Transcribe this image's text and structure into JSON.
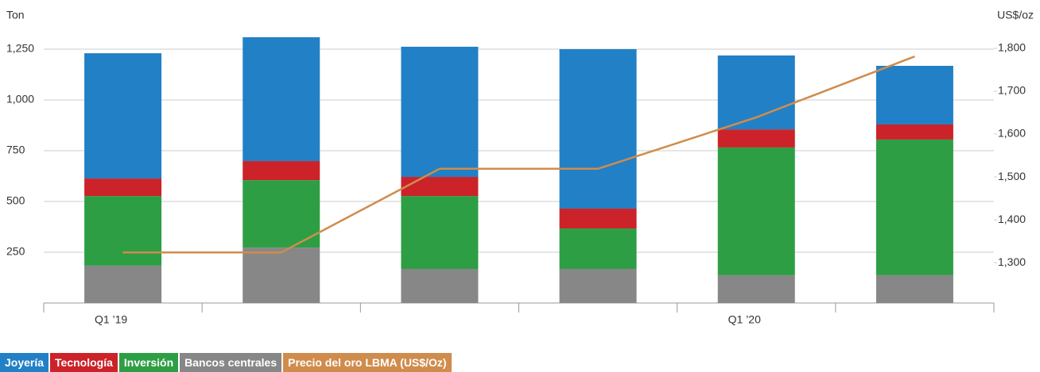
{
  "chart_data": {
    "type": "bar",
    "stacked": true,
    "y_label": "Ton",
    "y2_label": "US$/oz",
    "categories": [
      "Q1 ’19",
      null,
      null,
      null,
      "Q1 ’20",
      null
    ],
    "series": [
      {
        "name": "Bancos centrales",
        "color": "#878787",
        "values": [
          184,
          273,
          168,
          168,
          137,
          137
        ]
      },
      {
        "name": "Inversión",
        "color": "#2e9e45",
        "values": [
          343,
          332,
          359,
          199,
          629,
          668
        ]
      },
      {
        "name": "Tecnología",
        "color": "#cc2229",
        "values": [
          86,
          94,
          94,
          98,
          89,
          74
        ]
      },
      {
        "name": "Joyería",
        "color": "#2280c6",
        "values": [
          617,
          610,
          641,
          785,
          364,
          289
        ]
      },
      {
        "name": "Precio del oro LBMA (US$/Oz)",
        "color": "#d08c4c",
        "type": "line",
        "axis": "y2",
        "values": [
          1324,
          1324,
          1519,
          1519,
          1639,
          1781
        ]
      }
    ],
    "legend_order": [
      3,
      2,
      1,
      0,
      4
    ],
    "ylim": [
      0,
      1400
    ],
    "yticks": [
      {
        "value": 250,
        "label": "250"
      },
      {
        "value": 500,
        "label": "500"
      },
      {
        "value": 750,
        "label": "750"
      },
      {
        "value": 1000,
        "label": "1,000"
      },
      {
        "value": 1250,
        "label": "1,250"
      }
    ],
    "y2lim": [
      1206,
      1869
    ],
    "y2ticks": [
      {
        "value": 1300,
        "label": "1,300"
      },
      {
        "value": 1400,
        "label": "1,400"
      },
      {
        "value": 1500,
        "label": "1,500"
      },
      {
        "value": 1600,
        "label": "1,600"
      },
      {
        "value": 1700,
        "label": "1,700"
      },
      {
        "value": 1800,
        "label": "1,800"
      }
    ],
    "grid": true
  }
}
